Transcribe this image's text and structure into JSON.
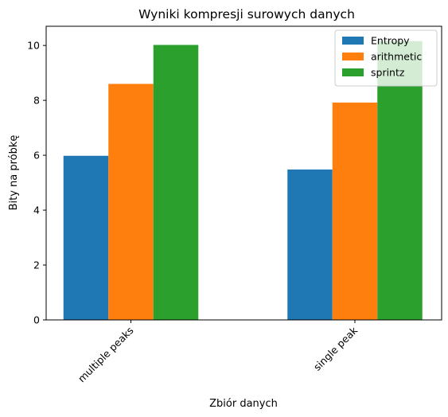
{
  "chart_data": {
    "type": "bar",
    "title": "Wyniki kompresji surowych danych",
    "xlabel": "Zbiór danych",
    "ylabel": "Bity na próbkę",
    "categories": [
      "multiple peaks",
      "single peak"
    ],
    "series": [
      {
        "name": "Entropy",
        "values": [
          5.98,
          5.48
        ],
        "color": "#1f77b4"
      },
      {
        "name": "arithmetic",
        "values": [
          8.6,
          7.92
        ],
        "color": "#ff7f0e"
      },
      {
        "name": "sprintz",
        "values": [
          10.02,
          10.16
        ],
        "color": "#2ca02c"
      }
    ],
    "ylim": [
      0,
      10.7
    ],
    "yticks": [
      0,
      2,
      4,
      6,
      8,
      10
    ],
    "grid": false,
    "legend": "top-right"
  }
}
